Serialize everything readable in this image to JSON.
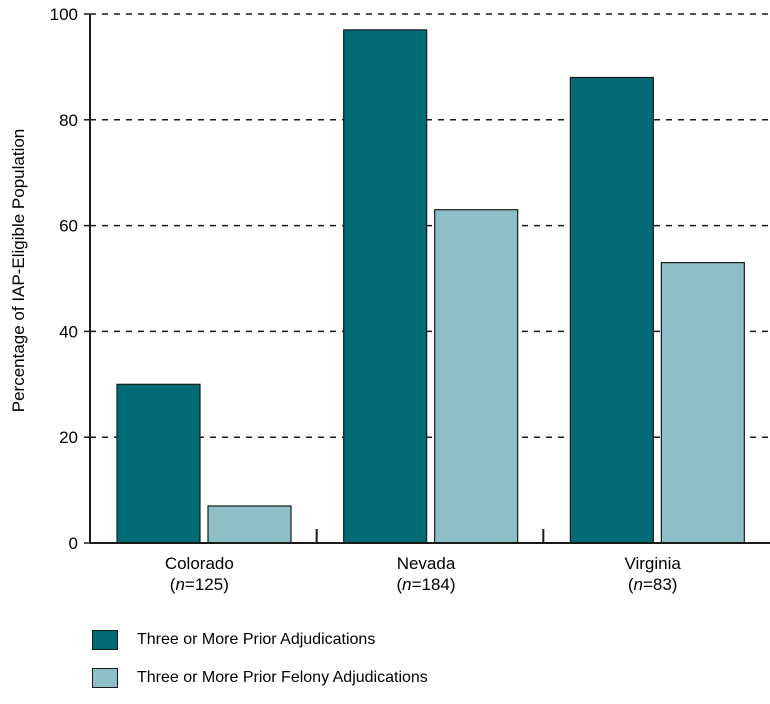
{
  "chart_data": {
    "type": "bar",
    "ylabel": "Percentage of IAP-Eligible Population",
    "ylim": [
      0,
      100
    ],
    "yticks": [
      0,
      20,
      40,
      60,
      80,
      100
    ],
    "grid": "dashed horizontal",
    "categories": [
      {
        "name": "Colorado",
        "n_prefix": "(",
        "n_var": "n",
        "n_value": "=125)"
      },
      {
        "name": "Nevada",
        "n_prefix": "(",
        "n_var": "n",
        "n_value": "=184)"
      },
      {
        "name": "Virginia",
        "n_prefix": "(",
        "n_var": "n",
        "n_value": "=83)"
      }
    ],
    "series": [
      {
        "name": "Three or More Prior Adjudications",
        "color": "#006b75",
        "values": [
          30,
          97,
          88
        ]
      },
      {
        "name": "Three or More Prior Felony Adjudications",
        "color": "#8fbfc6",
        "values": [
          7,
          63,
          53
        ]
      }
    ],
    "legend_placement": "bottom-left"
  }
}
